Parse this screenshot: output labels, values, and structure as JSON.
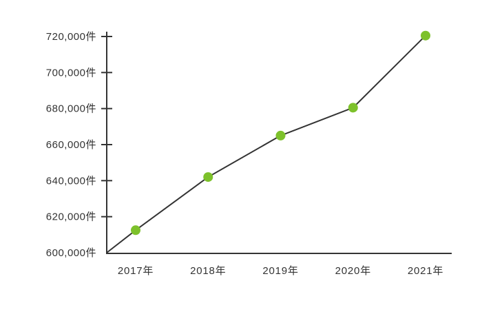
{
  "chart_data": {
    "type": "line",
    "title": "",
    "xlabel": "",
    "ylabel": "",
    "categories": [
      "2017年",
      "2018年",
      "2019年",
      "2020年",
      "2021年"
    ],
    "series": [
      {
        "values": [
          612500,
          642000,
          665000,
          680500,
          720500
        ]
      }
    ],
    "ylim": [
      600000,
      720000
    ],
    "yticks": [
      600000,
      620000,
      640000,
      660000,
      680000,
      700000,
      720000
    ],
    "ytick_labels": [
      "600,000件",
      "620,000件",
      "640,000件",
      "660,000件",
      "680,000件",
      "700,000件",
      "720,000件"
    ],
    "line_starts_at_origin": true,
    "grid": false,
    "legend": "none",
    "colors": {
      "line": "#333333",
      "marker": "#7dc12b",
      "axis": "#333333",
      "text": "#333333"
    }
  }
}
